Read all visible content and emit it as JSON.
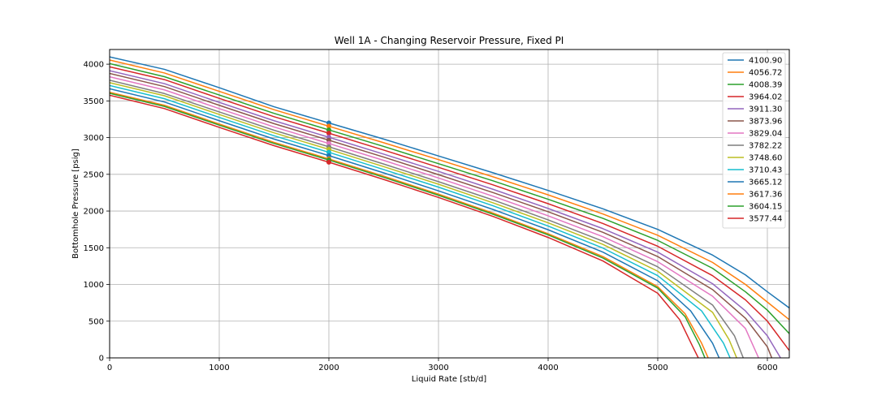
{
  "chart_data": {
    "type": "line",
    "title": "Well 1A - Changing Reservoir Pressure, Fixed PI",
    "xlabel": "Liquid Rate [stb/d]",
    "ylabel": "Bottomhole Pressure [psig]",
    "xlim": [
      0,
      6200
    ],
    "ylim": [
      0,
      4200
    ],
    "xticks": [
      0,
      1000,
      2000,
      3000,
      4000,
      5000,
      6000
    ],
    "yticks": [
      0,
      500,
      1000,
      1500,
      2000,
      2500,
      3000,
      3500,
      4000
    ],
    "grid": true,
    "legend_position": "top-right",
    "marker_rate": 2000,
    "series": [
      {
        "name": "4100.90",
        "color": "#1f77b4",
        "values": [
          [
            0,
            4100
          ],
          [
            500,
            3930
          ],
          [
            1000,
            3680
          ],
          [
            1500,
            3420
          ],
          [
            2000,
            3200
          ],
          [
            2500,
            2980
          ],
          [
            3000,
            2750
          ],
          [
            3500,
            2520
          ],
          [
            4000,
            2280
          ],
          [
            4500,
            2030
          ],
          [
            5000,
            1750
          ],
          [
            5500,
            1400
          ],
          [
            5800,
            1130
          ],
          [
            6000,
            900
          ],
          [
            6200,
            680
          ]
        ]
      },
      {
        "name": "4056.72",
        "color": "#ff7f0e",
        "values": [
          [
            0,
            4057
          ],
          [
            500,
            3880
          ],
          [
            1000,
            3630
          ],
          [
            1500,
            3380
          ],
          [
            2000,
            3155
          ],
          [
            2500,
            2930
          ],
          [
            3000,
            2700
          ],
          [
            3500,
            2465
          ],
          [
            4000,
            2220
          ],
          [
            4500,
            1960
          ],
          [
            5000,
            1670
          ],
          [
            5500,
            1300
          ],
          [
            5800,
            1000
          ],
          [
            6000,
            760
          ],
          [
            6200,
            520
          ]
        ]
      },
      {
        "name": "4008.39",
        "color": "#2ca02c",
        "values": [
          [
            0,
            4008
          ],
          [
            500,
            3830
          ],
          [
            1000,
            3580
          ],
          [
            1500,
            3330
          ],
          [
            2000,
            3105
          ],
          [
            2500,
            2880
          ],
          [
            3000,
            2645
          ],
          [
            3500,
            2410
          ],
          [
            4000,
            2160
          ],
          [
            4500,
            1900
          ],
          [
            5000,
            1600
          ],
          [
            5500,
            1220
          ],
          [
            5800,
            900
          ],
          [
            6000,
            650
          ],
          [
            6200,
            330
          ]
        ]
      },
      {
        "name": "3964.02",
        "color": "#d62728",
        "values": [
          [
            0,
            3964
          ],
          [
            500,
            3790
          ],
          [
            1000,
            3535
          ],
          [
            1500,
            3285
          ],
          [
            2000,
            3060
          ],
          [
            2500,
            2830
          ],
          [
            3000,
            2595
          ],
          [
            3500,
            2355
          ],
          [
            4000,
            2100
          ],
          [
            4500,
            1830
          ],
          [
            5000,
            1520
          ],
          [
            5500,
            1120
          ],
          [
            5800,
            790
          ],
          [
            6000,
            500
          ],
          [
            6200,
            100
          ]
        ]
      },
      {
        "name": "3911.30",
        "color": "#9467bd",
        "values": [
          [
            0,
            3911
          ],
          [
            500,
            3735
          ],
          [
            1000,
            3480
          ],
          [
            1500,
            3230
          ],
          [
            2000,
            3005
          ],
          [
            2500,
            2775
          ],
          [
            3000,
            2540
          ],
          [
            3500,
            2295
          ],
          [
            4000,
            2035
          ],
          [
            4500,
            1760
          ],
          [
            5000,
            1440
          ],
          [
            5500,
            1010
          ],
          [
            5800,
            640
          ],
          [
            6000,
            300
          ],
          [
            6120,
            0
          ]
        ]
      },
      {
        "name": "3873.96",
        "color": "#8c564b",
        "values": [
          [
            0,
            3874
          ],
          [
            500,
            3695
          ],
          [
            1000,
            3440
          ],
          [
            1500,
            3190
          ],
          [
            2000,
            2965
          ],
          [
            2500,
            2735
          ],
          [
            3000,
            2495
          ],
          [
            3500,
            2250
          ],
          [
            4000,
            1990
          ],
          [
            4500,
            1710
          ],
          [
            5000,
            1380
          ],
          [
            5500,
            930
          ],
          [
            5800,
            540
          ],
          [
            6000,
            150
          ],
          [
            6040,
            0
          ]
        ]
      },
      {
        "name": "3829.04",
        "color": "#e377c2",
        "values": [
          [
            0,
            3829
          ],
          [
            500,
            3650
          ],
          [
            1000,
            3395
          ],
          [
            1500,
            3145
          ],
          [
            2000,
            2920
          ],
          [
            2500,
            2690
          ],
          [
            3000,
            2450
          ],
          [
            3500,
            2200
          ],
          [
            4000,
            1935
          ],
          [
            4500,
            1650
          ],
          [
            5000,
            1310
          ],
          [
            5500,
            840
          ],
          [
            5800,
            400
          ],
          [
            5920,
            0
          ]
        ]
      },
      {
        "name": "3782.22",
        "color": "#7f7f7f",
        "values": [
          [
            0,
            3782
          ],
          [
            500,
            3600
          ],
          [
            1000,
            3350
          ],
          [
            1500,
            3100
          ],
          [
            2000,
            2875
          ],
          [
            2500,
            2640
          ],
          [
            3000,
            2400
          ],
          [
            3500,
            2150
          ],
          [
            4000,
            1880
          ],
          [
            4500,
            1590
          ],
          [
            5000,
            1240
          ],
          [
            5500,
            720
          ],
          [
            5700,
            300
          ],
          [
            5780,
            0
          ]
        ]
      },
      {
        "name": "3748.60",
        "color": "#bcbd22",
        "values": [
          [
            0,
            3749
          ],
          [
            500,
            3570
          ],
          [
            1000,
            3315
          ],
          [
            1500,
            3065
          ],
          [
            2000,
            2840
          ],
          [
            2500,
            2605
          ],
          [
            3000,
            2365
          ],
          [
            3500,
            2110
          ],
          [
            4000,
            1840
          ],
          [
            4500,
            1545
          ],
          [
            5000,
            1180
          ],
          [
            5500,
            620
          ],
          [
            5650,
            250
          ],
          [
            5720,
            0
          ]
        ]
      },
      {
        "name": "3710.43",
        "color": "#17becf",
        "values": [
          [
            0,
            3710
          ],
          [
            500,
            3530
          ],
          [
            1000,
            3275
          ],
          [
            1500,
            3025
          ],
          [
            2000,
            2800
          ],
          [
            2500,
            2565
          ],
          [
            3000,
            2325
          ],
          [
            3500,
            2070
          ],
          [
            4000,
            1795
          ],
          [
            4500,
            1495
          ],
          [
            5000,
            1120
          ],
          [
            5400,
            640
          ],
          [
            5600,
            200
          ],
          [
            5660,
            0
          ]
        ]
      },
      {
        "name": "3665.12",
        "color": "#1f77b4",
        "values": [
          [
            0,
            3665
          ],
          [
            500,
            3485
          ],
          [
            1000,
            3230
          ],
          [
            1500,
            2980
          ],
          [
            2000,
            2755
          ],
          [
            2500,
            2520
          ],
          [
            3000,
            2275
          ],
          [
            3500,
            2020
          ],
          [
            4000,
            1745
          ],
          [
            4500,
            1440
          ],
          [
            5000,
            1050
          ],
          [
            5300,
            640
          ],
          [
            5500,
            200
          ],
          [
            5560,
            0
          ]
        ]
      },
      {
        "name": "3617.36",
        "color": "#ff7f0e",
        "values": [
          [
            0,
            3617
          ],
          [
            500,
            3440
          ],
          [
            1000,
            3185
          ],
          [
            1500,
            2935
          ],
          [
            2000,
            2710
          ],
          [
            2500,
            2475
          ],
          [
            3000,
            2230
          ],
          [
            3500,
            1970
          ],
          [
            4000,
            1690
          ],
          [
            4500,
            1380
          ],
          [
            5000,
            970
          ],
          [
            5250,
            600
          ],
          [
            5400,
            200
          ],
          [
            5460,
            0
          ]
        ]
      },
      {
        "name": "3604.15",
        "color": "#2ca02c",
        "values": [
          [
            0,
            3604
          ],
          [
            500,
            3425
          ],
          [
            1000,
            3170
          ],
          [
            1500,
            2920
          ],
          [
            2000,
            2695
          ],
          [
            2500,
            2460
          ],
          [
            3000,
            2215
          ],
          [
            3500,
            1955
          ],
          [
            4000,
            1675
          ],
          [
            4500,
            1360
          ],
          [
            5000,
            950
          ],
          [
            5250,
            560
          ],
          [
            5380,
            180
          ],
          [
            5430,
            0
          ]
        ]
      },
      {
        "name": "3577.44",
        "color": "#d62728",
        "values": [
          [
            0,
            3577
          ],
          [
            500,
            3395
          ],
          [
            1000,
            3140
          ],
          [
            1500,
            2890
          ],
          [
            2000,
            2665
          ],
          [
            2500,
            2430
          ],
          [
            3000,
            2185
          ],
          [
            3500,
            1925
          ],
          [
            4000,
            1640
          ],
          [
            4500,
            1320
          ],
          [
            5000,
            880
          ],
          [
            5200,
            520
          ],
          [
            5320,
            150
          ],
          [
            5370,
            0
          ]
        ]
      }
    ]
  }
}
